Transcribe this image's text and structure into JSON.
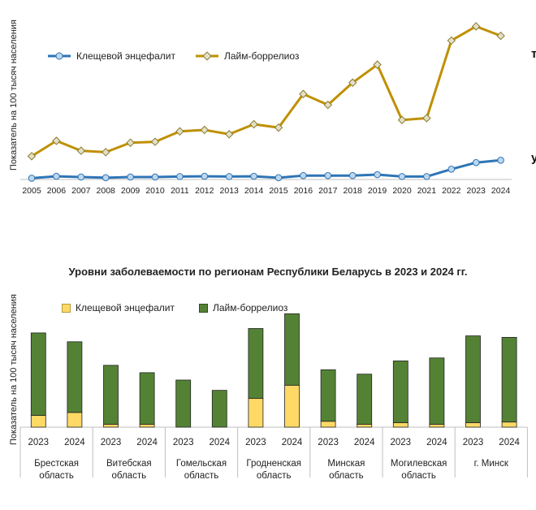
{
  "chart_data": [
    {
      "type": "line",
      "title": "",
      "xlabel": "",
      "ylabel": "Показатель на 100 тысяч населения",
      "categories": [
        "2005",
        "2006",
        "2007",
        "2008",
        "2009",
        "2010",
        "2011",
        "2012",
        "2013",
        "2014",
        "2015",
        "2016",
        "2017",
        "2018",
        "2019",
        "2020",
        "2021",
        "2022",
        "2023",
        "2024"
      ],
      "series": [
        {
          "name": "Клещевой энцефалит",
          "color": "#2e75b6",
          "values": [
            0.2,
            1.0,
            0.7,
            0.4,
            0.7,
            0.7,
            0.9,
            1.0,
            0.9,
            1.0,
            0.4,
            1.3,
            1.3,
            1.3,
            1.7,
            0.9,
            0.9,
            4.0,
            6.8,
            7.8
          ]
        },
        {
          "name": "Лайм-боррелиоз",
          "color": "#bf9000",
          "values": [
            9.5,
            16.0,
            11.8,
            11.2,
            15.2,
            15.6,
            20.0,
            20.6,
            18.8,
            23.0,
            21.6,
            35.8,
            31.2,
            40.6,
            48.2,
            24.8,
            25.6,
            58.4,
            64.4,
            60.4
          ]
        }
      ],
      "ylim": [
        0,
        68
      ],
      "legend": "top-left",
      "grid": false
    },
    {
      "type": "bar",
      "stacked": true,
      "title": "Уровни заболеваемости по регионам Республики Беларусь в 2023 и 2024 гг.",
      "ylabel": "Показатель на 100 тысяч населения",
      "legend": "top-left",
      "grid": false,
      "ylim": [
        0,
        75
      ],
      "categories": [
        "2023",
        "2024",
        "2023",
        "2024",
        "2023",
        "2024",
        "2023",
        "2024",
        "2023",
        "2024",
        "2023",
        "2024",
        "2023",
        "2024"
      ],
      "groups": [
        "Брестская область",
        "Витебская область",
        "Гомельская область",
        "Гродненская область",
        "Минская область",
        "Могилевская область",
        "г. Минск"
      ],
      "series": [
        {
          "name": "Клещевой энцефалит",
          "color": "#ffd966",
          "values": [
            8,
            10,
            2,
            2,
            0,
            0,
            19.5,
            28.5,
            4,
            2,
            3,
            2,
            3,
            3.5
          ]
        },
        {
          "name": "Лайм-боррелиоз",
          "color": "#548235",
          "values": [
            56,
            48,
            40,
            35,
            32,
            25,
            47.5,
            48.5,
            35,
            34,
            42,
            45,
            59,
            57.5
          ]
        }
      ]
    }
  ],
  "right_edge_fragments": [
    "т",
    "у"
  ]
}
